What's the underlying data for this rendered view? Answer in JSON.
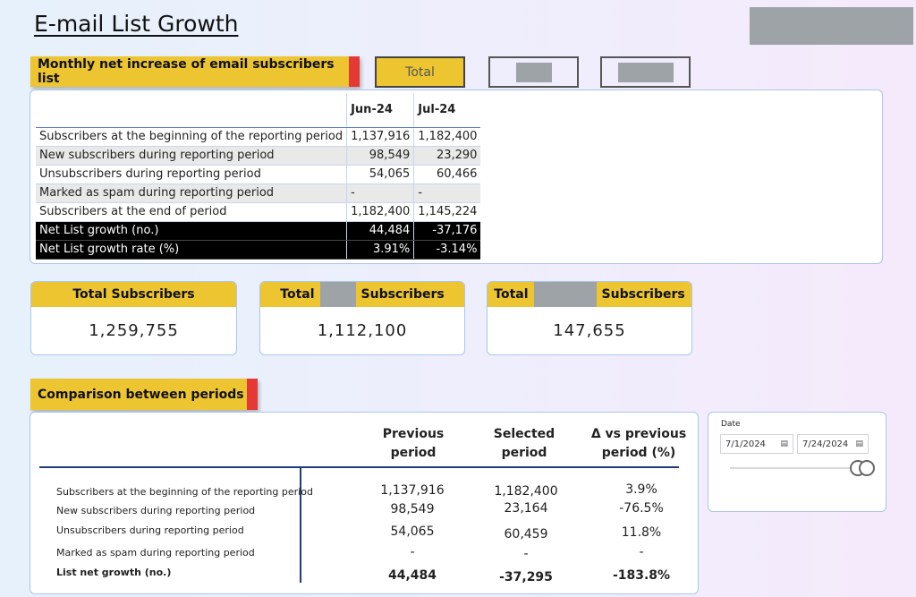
{
  "page_title": "E-mail List Growth",
  "monthly": {
    "header": "Monthly net increase of email subscribers list",
    "buttons": {
      "total": "Total"
    },
    "columns": [
      "Jun-24",
      "Jul-24"
    ],
    "rows": [
      {
        "label": "Subscribers at the beginning of the reporting period",
        "jun": "1,137,916",
        "jul": "1,182,400"
      },
      {
        "label": "New subscribers during reporting period",
        "jun": "98,549",
        "jul": "23,290"
      },
      {
        "label": "Unsubscribers during reporting period",
        "jun": "54,065",
        "jul": "60,466"
      },
      {
        "label": "Marked as spam during reporting period",
        "jun": "-",
        "jul": "-"
      },
      {
        "label": "Subscribers at the end of period",
        "jun": "1,182,400",
        "jul": "1,145,224"
      },
      {
        "label": "Net List growth (no.)",
        "jun": "44,484",
        "jul": "-37,176"
      },
      {
        "label": "Net List growth rate (%)",
        "jun": "3.91%",
        "jul": "-3.14%"
      }
    ]
  },
  "kpis": [
    {
      "title": "Total Subscribers",
      "value": "1,259,755"
    },
    {
      "title_prefix": "Total",
      "title_suffix": "Subscribers",
      "value": "1,112,100"
    },
    {
      "title_prefix": "Total",
      "title_suffix": "Subscribers",
      "value": "147,655"
    }
  ],
  "comparison": {
    "header": "Comparison between periods",
    "col_previous": [
      "Previous",
      "period"
    ],
    "col_selected": [
      "Selected",
      "period"
    ],
    "col_delta": [
      "Δ vs previous",
      "period (%)"
    ],
    "rows": [
      {
        "label": "Subscribers at the beginning of the reporting period",
        "prev": "1,137,916",
        "sel": "1,182,400",
        "delta": "3.9%"
      },
      {
        "label": "New subscribers during reporting period",
        "prev": "98,549",
        "sel": "23,164",
        "delta": "-76.5%"
      },
      {
        "label": "Unsubscribers during reporting period",
        "prev": "54,065",
        "sel": "60,459",
        "delta": "11.8%"
      },
      {
        "label": "Marked as spam during reporting period",
        "prev": "-",
        "sel": "-",
        "delta": "-"
      },
      {
        "label": "List net growth (no.)",
        "prev": "44,484",
        "sel": "-37,295",
        "delta": "-183.8%"
      }
    ]
  },
  "date_slicer": {
    "title": "Date",
    "start": "7/1/2024",
    "end": "7/24/2024",
    "calendar_icon": "calendar-icon"
  },
  "colors": {
    "accent": "#ecc531",
    "red": "#e53935",
    "redacted": "#9ea3a8",
    "panel_border": "#a9c7ee"
  }
}
